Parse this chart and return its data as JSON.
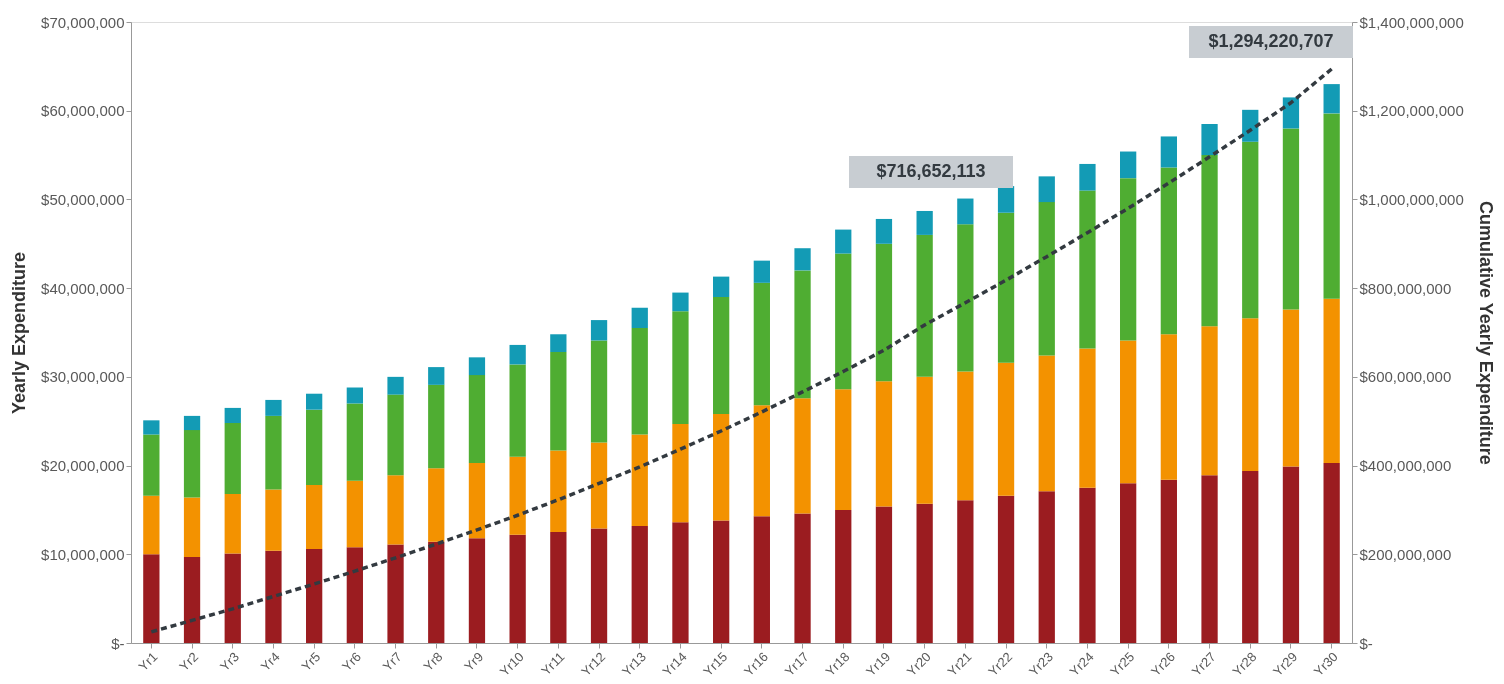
{
  "chart_data": {
    "type": "bar",
    "stacked": true,
    "ylabel": "Yearly Expenditure",
    "y2label": "Cumulative Yearly Expenditure",
    "categories": [
      "Yr1",
      "Yr2",
      "Yr3",
      "Yr4",
      "Yr5",
      "Yr6",
      "Yr7",
      "Yr8",
      "Yr9",
      "Yr10",
      "Yr11",
      "Yr12",
      "Yr13",
      "Yr14",
      "Yr15",
      "Yr16",
      "Yr17",
      "Yr18",
      "Yr19",
      "Yr20",
      "Yr21",
      "Yr22",
      "Yr23",
      "Yr24",
      "Yr25",
      "Yr26",
      "Yr27",
      "Yr28",
      "Yr29",
      "Yr30"
    ],
    "series": [
      {
        "color": "#9b1c20",
        "values": [
          10000000,
          9700000,
          10100000,
          10400000,
          10600000,
          10800000,
          11100000,
          11400000,
          11800000,
          12200000,
          12500000,
          12900000,
          13200000,
          13600000,
          13800000,
          14300000,
          14600000,
          15000000,
          15400000,
          15700000,
          16100000,
          16600000,
          17100000,
          17500000,
          18000000,
          18400000,
          18900000,
          19400000,
          19900000,
          20300000
        ]
      },
      {
        "color": "#f39200",
        "values": [
          6600000,
          6700000,
          6700000,
          6900000,
          7200000,
          7500000,
          7800000,
          8300000,
          8500000,
          8800000,
          9200000,
          9700000,
          10300000,
          11100000,
          12000000,
          12500000,
          13000000,
          13600000,
          14100000,
          14300000,
          14500000,
          15000000,
          15300000,
          15700000,
          16100000,
          16400000,
          16800000,
          17200000,
          17700000,
          18500000
        ]
      },
      {
        "color": "#4fad32",
        "values": [
          6900000,
          7600000,
          8000000,
          8300000,
          8500000,
          8700000,
          9100000,
          9400000,
          9900000,
          10400000,
          11100000,
          11500000,
          12000000,
          12700000,
          13200000,
          13800000,
          14400000,
          15300000,
          15500000,
          16000000,
          16600000,
          16900000,
          17300000,
          17800000,
          18300000,
          18800000,
          19300000,
          19900000,
          20400000,
          20900000
        ]
      },
      {
        "color": "#139bb5",
        "values": [
          1600000,
          1600000,
          1700000,
          1800000,
          1800000,
          1800000,
          2000000,
          2000000,
          2000000,
          2200000,
          2000000,
          2300000,
          2300000,
          2100000,
          2300000,
          2500000,
          2500000,
          2700000,
          2800000,
          2700000,
          2900000,
          3000000,
          2900000,
          3000000,
          3000000,
          3500000,
          3500000,
          3600000,
          3500000,
          3300000
        ]
      },
      {
        "type": "line",
        "axis": "y2",
        "color": "#333a40",
        "line_style": "dashed",
        "values": [
          25000000,
          51000000,
          77000000,
          105000000,
          133000000,
          162000000,
          192000000,
          223000000,
          255000000,
          288000000,
          323000000,
          360000000,
          397000000,
          437000000,
          478000000,
          521000000,
          566000000,
          612000000,
          660000000,
          717000000,
          767000000,
          818000000,
          871000000,
          925000000,
          980000000,
          1037000000,
          1096000000,
          1156000000,
          1218000000,
          1294000000
        ]
      }
    ],
    "ylim": [
      0,
      70000000
    ],
    "yticks": [
      {
        "value": 0,
        "label": "$-"
      },
      {
        "value": 10000000,
        "label": "$10,000,000"
      },
      {
        "value": 20000000,
        "label": "$20,000,000"
      },
      {
        "value": 30000000,
        "label": "$30,000,000"
      },
      {
        "value": 40000000,
        "label": "$40,000,000"
      },
      {
        "value": 50000000,
        "label": "$50,000,000"
      },
      {
        "value": 60000000,
        "label": "$60,000,000"
      },
      {
        "value": 70000000,
        "label": "$70,000,000"
      }
    ],
    "y2lim": [
      0,
      1400000000
    ],
    "y2ticks": [
      {
        "value": 0,
        "label": "$-"
      },
      {
        "value": 200000000,
        "label": "$200,000,000"
      },
      {
        "value": 400000000,
        "label": "$400,000,000"
      },
      {
        "value": 600000000,
        "label": "$600,000,000"
      },
      {
        "value": 800000000,
        "label": "$800,000,000"
      },
      {
        "value": 1000000000,
        "label": "$1,000,000,000"
      },
      {
        "value": 1200000000,
        "label": "$1,200,000,000"
      },
      {
        "value": 1400000000,
        "label": "$1,400,000,000"
      }
    ],
    "annotations": [
      "$716,652,113",
      "$1,294,220,707"
    ],
    "grid": false,
    "legend": false
  }
}
